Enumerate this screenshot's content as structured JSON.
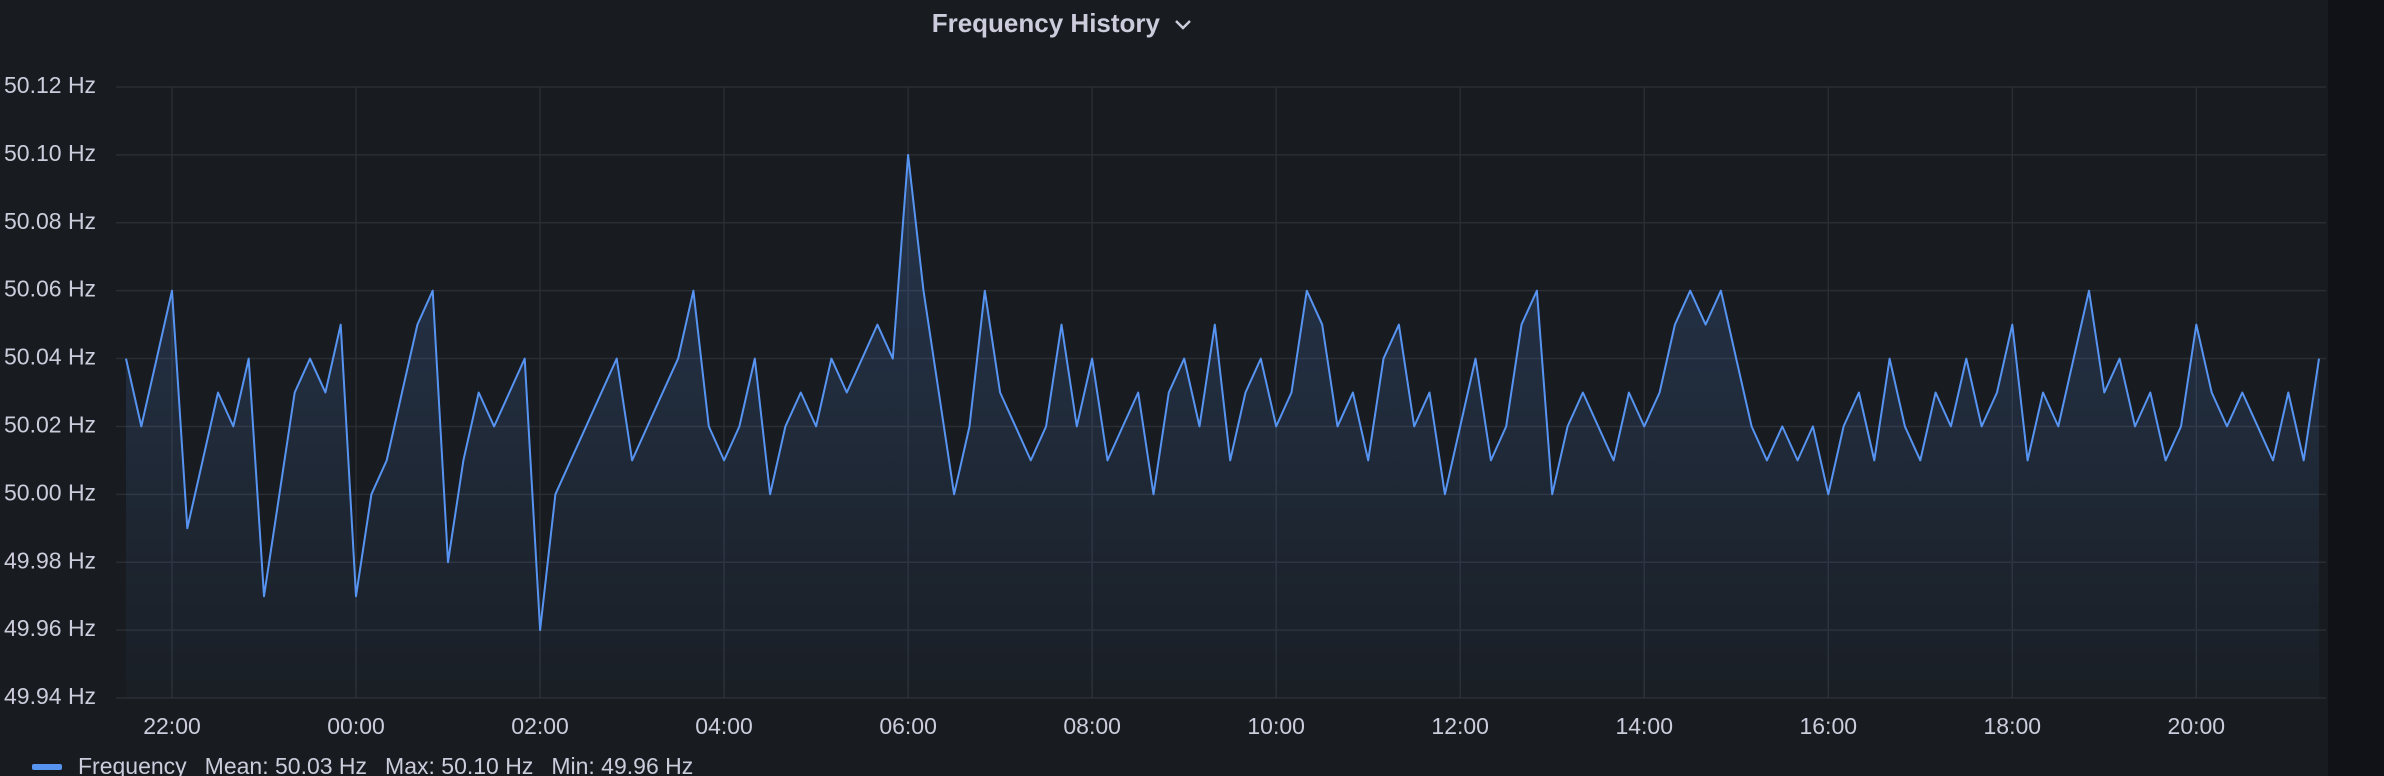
{
  "chart_data": {
    "type": "line",
    "title": "Frequency History",
    "x": [
      "21:30",
      "21:40",
      "21:50",
      "22:00",
      "22:10",
      "22:20",
      "22:30",
      "22:40",
      "22:50",
      "23:00",
      "23:10",
      "23:20",
      "23:30",
      "23:40",
      "23:50",
      "00:00",
      "00:10",
      "00:20",
      "00:30",
      "00:40",
      "00:50",
      "01:00",
      "01:10",
      "01:20",
      "01:30",
      "01:40",
      "01:50",
      "02:00",
      "02:10",
      "02:20",
      "02:30",
      "02:40",
      "02:50",
      "03:00",
      "03:10",
      "03:20",
      "03:30",
      "03:40",
      "03:50",
      "04:00",
      "04:10",
      "04:20",
      "04:30",
      "04:40",
      "04:50",
      "05:00",
      "05:10",
      "05:20",
      "05:30",
      "05:40",
      "05:50",
      "06:00",
      "06:10",
      "06:20",
      "06:30",
      "06:40",
      "06:50",
      "07:00",
      "07:10",
      "07:20",
      "07:30",
      "07:40",
      "07:50",
      "08:00",
      "08:10",
      "08:20",
      "08:30",
      "08:40",
      "08:50",
      "09:00",
      "09:10",
      "09:20",
      "09:30",
      "09:40",
      "09:50",
      "10:00",
      "10:10",
      "10:20",
      "10:30",
      "10:40",
      "10:50",
      "11:00",
      "11:10",
      "11:20",
      "11:30",
      "11:40",
      "11:50",
      "12:00",
      "12:10",
      "12:20",
      "12:30",
      "12:40",
      "12:50",
      "13:00",
      "13:10",
      "13:20",
      "13:30",
      "13:40",
      "13:50",
      "14:00",
      "14:10",
      "14:20",
      "14:30",
      "14:40",
      "14:50",
      "15:00",
      "15:10",
      "15:20",
      "15:30",
      "15:40",
      "15:50",
      "16:00",
      "16:10",
      "16:20",
      "16:30",
      "16:40",
      "16:50",
      "17:00",
      "17:10",
      "17:20",
      "17:30",
      "17:40",
      "17:50",
      "18:00",
      "18:10",
      "18:20",
      "18:30",
      "18:40",
      "18:50",
      "19:00",
      "19:10",
      "19:20",
      "19:30",
      "19:40",
      "19:50",
      "20:00",
      "20:10",
      "20:20",
      "20:30",
      "20:40",
      "20:50",
      "21:00",
      "21:10",
      "21:20"
    ],
    "series": [
      {
        "name": "Frequency",
        "color": "#5794f2",
        "values": [
          50.04,
          50.02,
          50.04,
          50.06,
          49.99,
          50.01,
          50.03,
          50.02,
          50.04,
          49.97,
          50.0,
          50.03,
          50.04,
          50.03,
          50.05,
          49.97,
          50.0,
          50.01,
          50.03,
          50.05,
          50.06,
          49.98,
          50.01,
          50.03,
          50.02,
          50.03,
          50.04,
          49.96,
          50.0,
          50.01,
          50.02,
          50.03,
          50.04,
          50.01,
          50.02,
          50.03,
          50.04,
          50.06,
          50.02,
          50.01,
          50.02,
          50.04,
          50.0,
          50.02,
          50.03,
          50.02,
          50.04,
          50.03,
          50.04,
          50.05,
          50.04,
          50.1,
          50.06,
          50.03,
          50.0,
          50.02,
          50.06,
          50.03,
          50.02,
          50.01,
          50.02,
          50.05,
          50.02,
          50.04,
          50.01,
          50.02,
          50.03,
          50.0,
          50.03,
          50.04,
          50.02,
          50.05,
          50.01,
          50.03,
          50.04,
          50.02,
          50.03,
          50.06,
          50.05,
          50.02,
          50.03,
          50.01,
          50.04,
          50.05,
          50.02,
          50.03,
          50.0,
          50.02,
          50.04,
          50.01,
          50.02,
          50.05,
          50.06,
          50.0,
          50.02,
          50.03,
          50.02,
          50.01,
          50.03,
          50.02,
          50.03,
          50.05,
          50.06,
          50.05,
          50.06,
          50.04,
          50.02,
          50.01,
          50.02,
          50.01,
          50.02,
          50.0,
          50.02,
          50.03,
          50.01,
          50.04,
          50.02,
          50.01,
          50.03,
          50.02,
          50.04,
          50.02,
          50.03,
          50.05,
          50.01,
          50.03,
          50.02,
          50.04,
          50.06,
          50.03,
          50.04,
          50.02,
          50.03,
          50.01,
          50.02,
          50.05,
          50.03,
          50.02,
          50.03,
          50.02,
          50.01,
          50.03,
          50.01,
          50.04
        ]
      }
    ],
    "legend_stats": [
      "Mean: 50.03 Hz",
      "Max: 50.10 Hz",
      "Min: 49.96 Hz"
    ],
    "ylim": [
      49.94,
      50.12
    ],
    "yticks": [
      {
        "value": 49.94,
        "label": "49.94 Hz"
      },
      {
        "value": 49.96,
        "label": "49.96 Hz"
      },
      {
        "value": 49.98,
        "label": "49.98 Hz"
      },
      {
        "value": 50.0,
        "label": "50.00 Hz"
      },
      {
        "value": 50.02,
        "label": "50.02 Hz"
      },
      {
        "value": 50.04,
        "label": "50.04 Hz"
      },
      {
        "value": 50.06,
        "label": "50.06 Hz"
      },
      {
        "value": 50.08,
        "label": "50.08 Hz"
      },
      {
        "value": 50.1,
        "label": "50.10 Hz"
      },
      {
        "value": 50.12,
        "label": "50.12 Hz"
      }
    ],
    "xticks": [
      "22:00",
      "00:00",
      "02:00",
      "04:00",
      "06:00",
      "08:00",
      "10:00",
      "12:00",
      "14:00",
      "16:00",
      "18:00",
      "20:00"
    ],
    "grid": true,
    "legend": "bottom-left"
  }
}
